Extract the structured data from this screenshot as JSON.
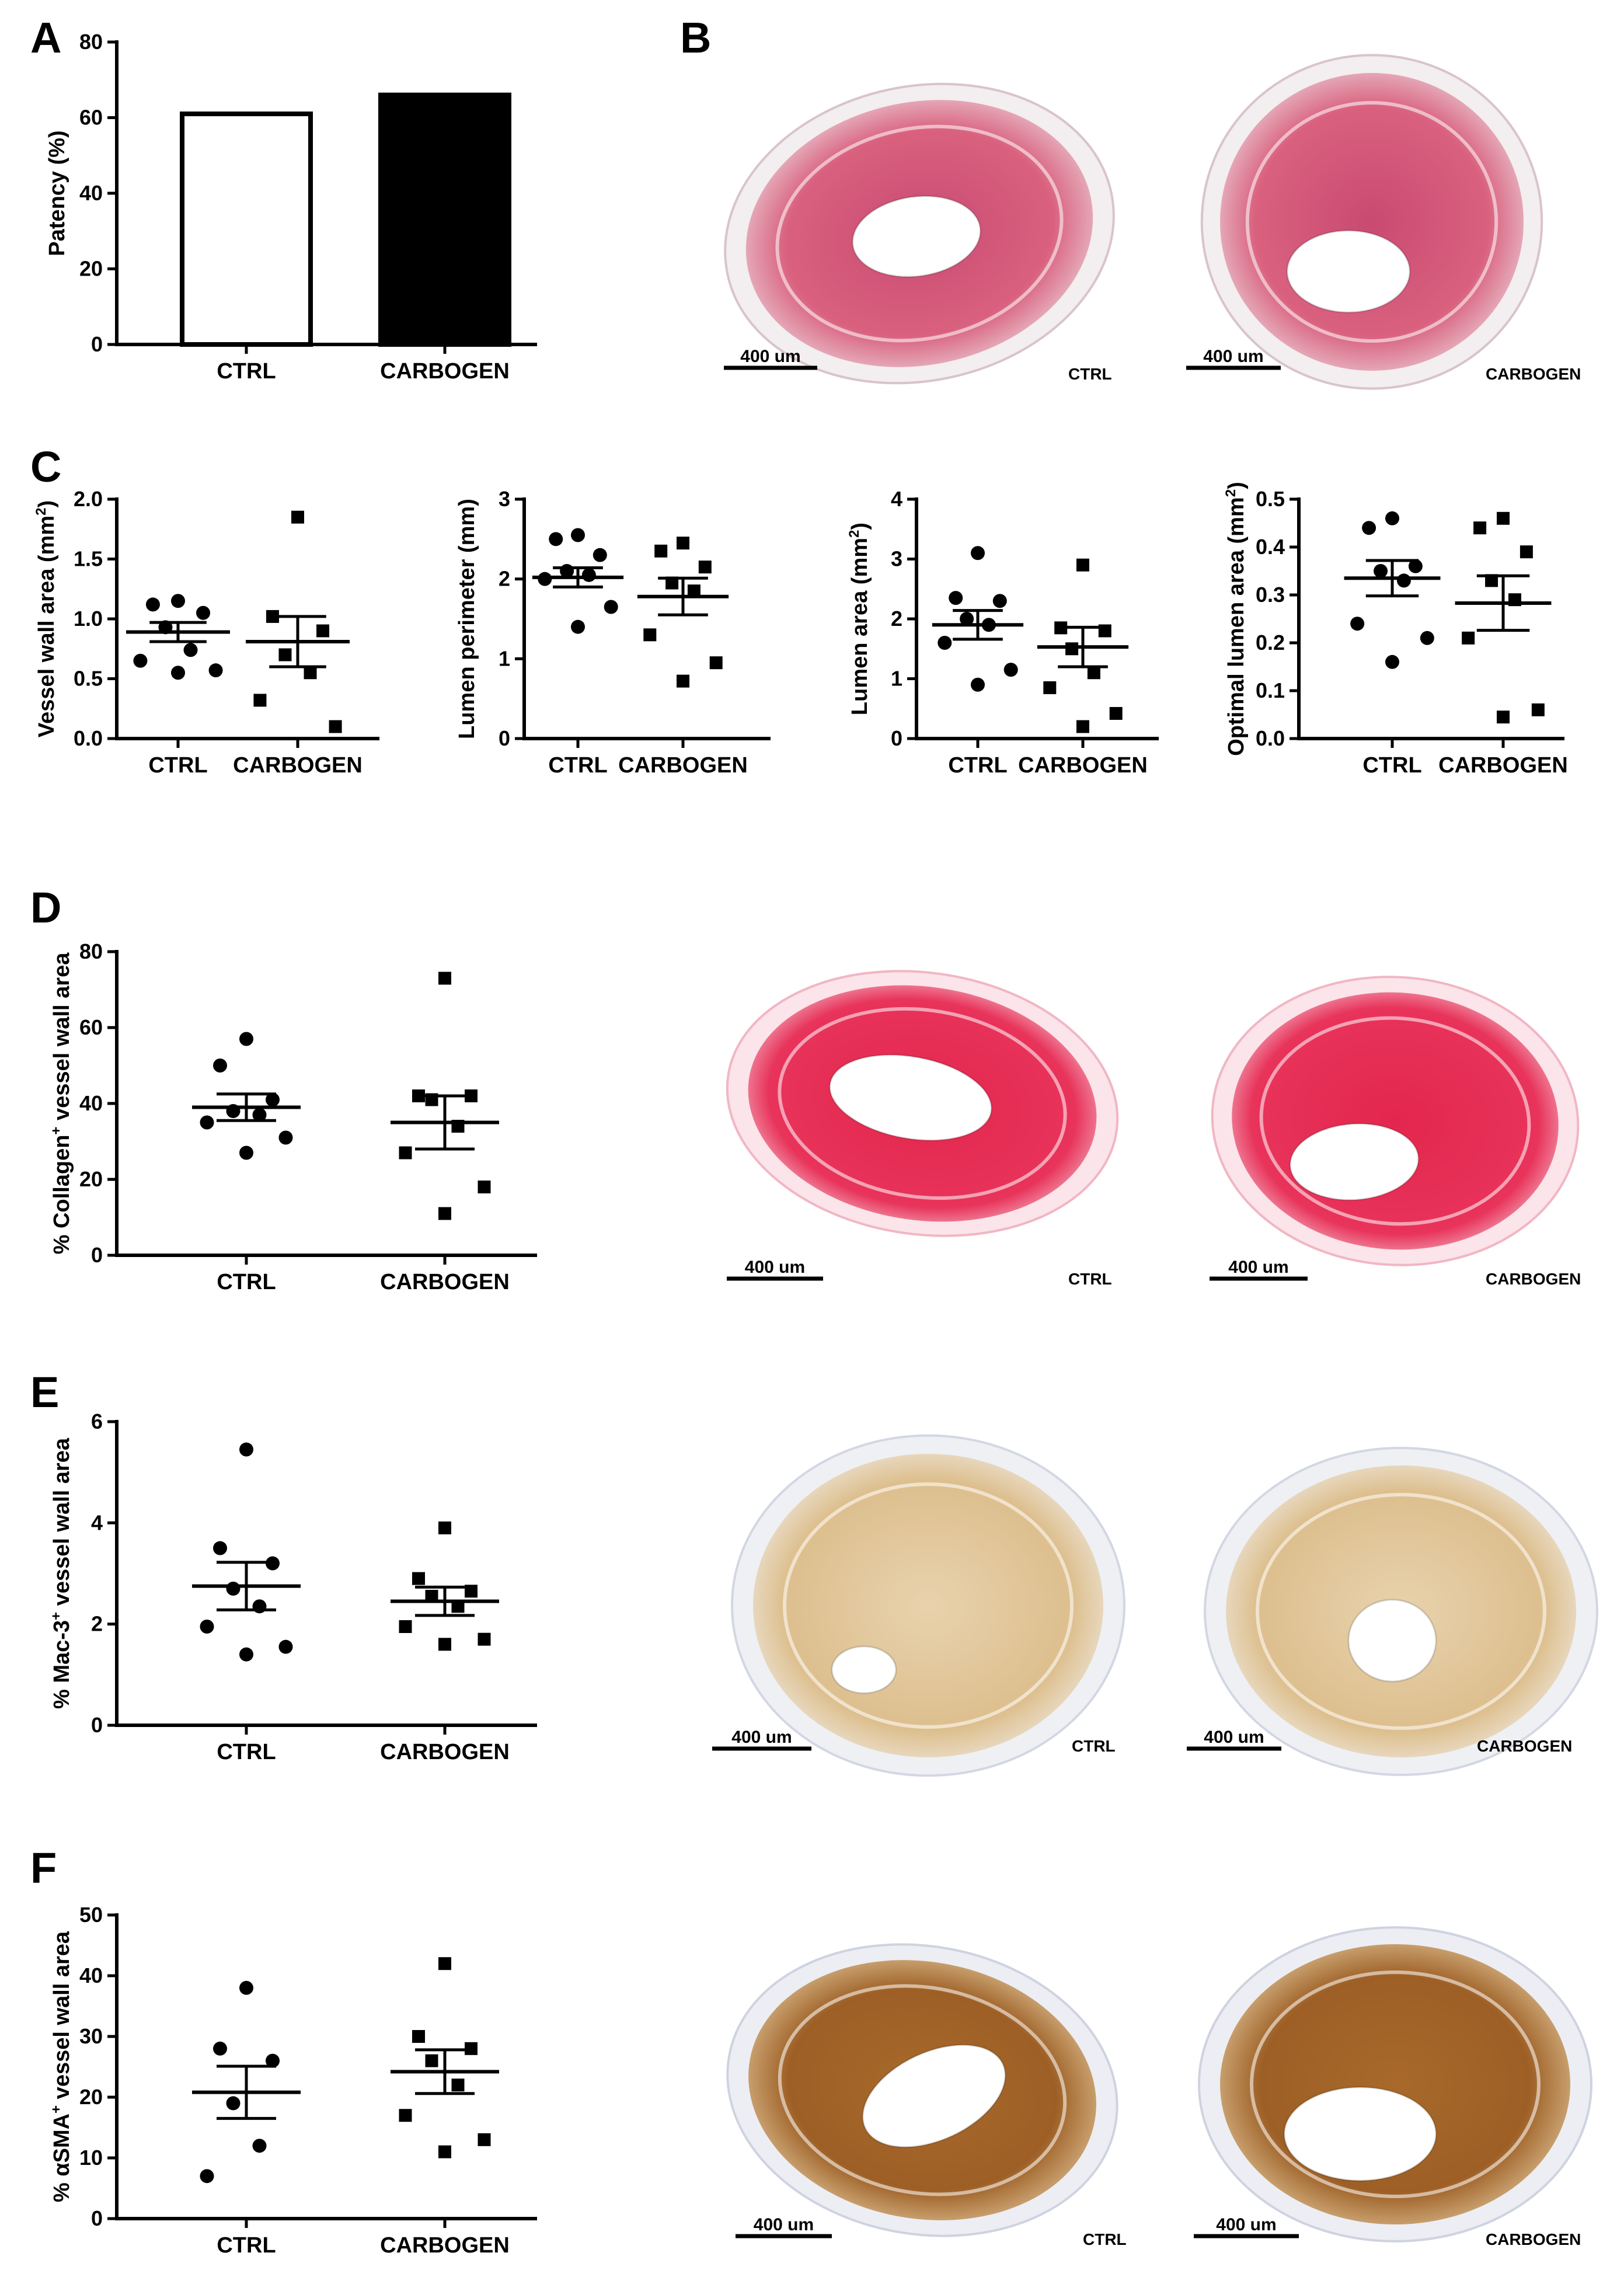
{
  "panels": [
    {
      "letter": "A",
      "chart_data": {
        "type": "bar",
        "categories": [
          "CTRL",
          "CARBOGEN"
        ],
        "values": [
          61,
          66
        ],
        "fills": [
          "#ffffff",
          "#000000"
        ],
        "ylabel": "Patency (%)",
        "ylim": [
          0,
          80
        ],
        "yticks": [
          0,
          20,
          40,
          60,
          80
        ]
      }
    },
    {
      "letter": "B",
      "images": [
        {
          "label": "CTRL",
          "scale": "400 um",
          "stain": "masson"
        },
        {
          "label": "CARBOGEN",
          "scale": "400 um",
          "stain": "masson"
        }
      ]
    },
    {
      "letter": "C",
      "chart_data": [
        {
          "type": "scatter",
          "categories": [
            "CTRL",
            "CARBOGEN"
          ],
          "ylabel": "Vessel wall area (mm",
          "ylabel_sup": "2",
          "ylabel_end": ")",
          "ylim": [
            0,
            2.0
          ],
          "yticks": [
            "0.0",
            "0.5",
            "1.0",
            "1.5",
            "2.0"
          ],
          "series": [
            {
              "name": "CTRL",
              "marker": "circle",
              "values": [
                1.15,
                1.12,
                1.05,
                0.93,
                0.74,
                0.65,
                0.57,
                0.55
              ],
              "mean": 0.89,
              "sem": 0.08
            },
            {
              "name": "CARBOGEN",
              "marker": "square",
              "values": [
                1.85,
                1.02,
                0.9,
                0.7,
                0.55,
                0.32,
                0.1
              ],
              "mean": 0.81,
              "sem": 0.21
            }
          ]
        },
        {
          "type": "scatter",
          "categories": [
            "CTRL",
            "CARBOGEN"
          ],
          "ylabel": "Lumen perimeter (mm)",
          "ylim": [
            0,
            3
          ],
          "yticks": [
            "0",
            "1",
            "2",
            "3"
          ],
          "series": [
            {
              "name": "CTRL",
              "marker": "circle",
              "values": [
                2.55,
                2.5,
                2.3,
                2.1,
                2.05,
                2.0,
                1.65,
                1.4
              ],
              "mean": 2.02,
              "sem": 0.12
            },
            {
              "name": "CARBOGEN",
              "marker": "square",
              "values": [
                2.45,
                2.35,
                2.15,
                1.95,
                1.85,
                1.3,
                0.95,
                0.72
              ],
              "mean": 1.78,
              "sem": 0.23
            }
          ]
        },
        {
          "type": "scatter",
          "categories": [
            "CTRL",
            "CARBOGEN"
          ],
          "ylabel": "Lumen area (mm",
          "ylabel_sup": "2",
          "ylabel_end": ")",
          "ylim": [
            0,
            4
          ],
          "yticks": [
            "0",
            "1",
            "2",
            "3",
            "4"
          ],
          "series": [
            {
              "name": "CTRL",
              "marker": "circle",
              "values": [
                3.1,
                2.35,
                2.3,
                2.0,
                1.9,
                1.6,
                1.15,
                0.9
              ],
              "mean": 1.9,
              "sem": 0.24
            },
            {
              "name": "CARBOGEN",
              "marker": "square",
              "values": [
                2.9,
                1.85,
                1.8,
                1.5,
                1.1,
                0.85,
                0.42,
                0.2
              ],
              "mean": 1.53,
              "sem": 0.33
            }
          ]
        },
        {
          "type": "scatter",
          "categories": [
            "CTRL",
            "CARBOGEN"
          ],
          "ylabel": "Optimal lumen area (mm",
          "ylabel_sup": "2",
          "ylabel_end": ")",
          "ylim": [
            0,
            0.5
          ],
          "yticks": [
            "0.0",
            "0.1",
            "0.2",
            "0.3",
            "0.4",
            "0.5"
          ],
          "series": [
            {
              "name": "CTRL",
              "marker": "circle",
              "values": [
                0.46,
                0.44,
                0.36,
                0.35,
                0.33,
                0.24,
                0.21,
                0.16
              ],
              "mean": 0.335,
              "sem": 0.037
            },
            {
              "name": "CARBOGEN",
              "marker": "square",
              "values": [
                0.46,
                0.44,
                0.39,
                0.33,
                0.29,
                0.21,
                0.06,
                0.045
              ],
              "mean": 0.283,
              "sem": 0.057
            }
          ]
        }
      ]
    },
    {
      "letter": "D",
      "chart_data": {
        "type": "scatter",
        "categories": [
          "CTRL",
          "CARBOGEN"
        ],
        "ylabel": "% Collagen",
        "ylabel_sup": "+",
        "ylabel_end": " vessel wall area",
        "ylim": [
          0,
          80
        ],
        "yticks": [
          "0",
          "20",
          "40",
          "60",
          "80"
        ],
        "series": [
          {
            "name": "CTRL",
            "marker": "circle",
            "values": [
              57,
              50,
              41,
              38,
              37,
              35,
              31,
              27
            ],
            "mean": 39,
            "sem": 3.5
          },
          {
            "name": "CARBOGEN",
            "marker": "square",
            "values": [
              73,
              42,
              42,
              41,
              34,
              27,
              18,
              11
            ],
            "mean": 35,
            "sem": 7
          }
        ]
      },
      "images": [
        {
          "label": "CTRL",
          "scale": "400 um",
          "stain": "sirius"
        },
        {
          "label": "CARBOGEN",
          "scale": "400 um",
          "stain": "sirius"
        }
      ]
    },
    {
      "letter": "E",
      "chart_data": {
        "type": "scatter",
        "categories": [
          "CTRL",
          "CARBOGEN"
        ],
        "ylabel": "% Mac-3",
        "ylabel_sup": "+",
        "ylabel_end": " vessel wall area",
        "ylim": [
          0,
          6
        ],
        "yticks": [
          "0",
          "2",
          "4",
          "6"
        ],
        "series": [
          {
            "name": "CTRL",
            "marker": "circle",
            "values": [
              5.45,
              3.5,
              3.2,
              2.7,
              2.35,
              1.95,
              1.55,
              1.4
            ],
            "mean": 2.75,
            "sem": 0.47
          },
          {
            "name": "CARBOGEN",
            "marker": "square",
            "values": [
              3.9,
              2.9,
              2.65,
              2.55,
              2.35,
              1.95,
              1.7,
              1.6
            ],
            "mean": 2.45,
            "sem": 0.28
          }
        ]
      },
      "images": [
        {
          "label": "CTRL",
          "scale": "400 um",
          "stain": "dab-light"
        },
        {
          "label": "CARBOGEN",
          "scale": "400 um",
          "stain": "dab-light"
        }
      ]
    },
    {
      "letter": "F",
      "chart_data": {
        "type": "scatter",
        "categories": [
          "CTRL",
          "CARBOGEN"
        ],
        "ylabel": "% αSMA",
        "ylabel_sup": "+",
        "ylabel_end": " vessel wall area",
        "ylim": [
          0,
          50
        ],
        "yticks": [
          "0",
          "10",
          "20",
          "30",
          "40",
          "50"
        ],
        "series": [
          {
            "name": "CTRL",
            "marker": "circle",
            "values": [
              38,
              28,
              26,
              19,
              12,
              7
            ],
            "mean": 20.8,
            "sem": 4.3
          },
          {
            "name": "CARBOGEN",
            "marker": "square",
            "values": [
              42,
              30,
              28,
              26,
              22,
              17,
              13,
              11
            ],
            "mean": 24.2,
            "sem": 3.6
          }
        ]
      },
      "images": [
        {
          "label": "CTRL",
          "scale": "400 um",
          "stain": "dab-dark"
        },
        {
          "label": "CARBOGEN",
          "scale": "400 um",
          "stain": "dab-dark"
        }
      ]
    }
  ]
}
